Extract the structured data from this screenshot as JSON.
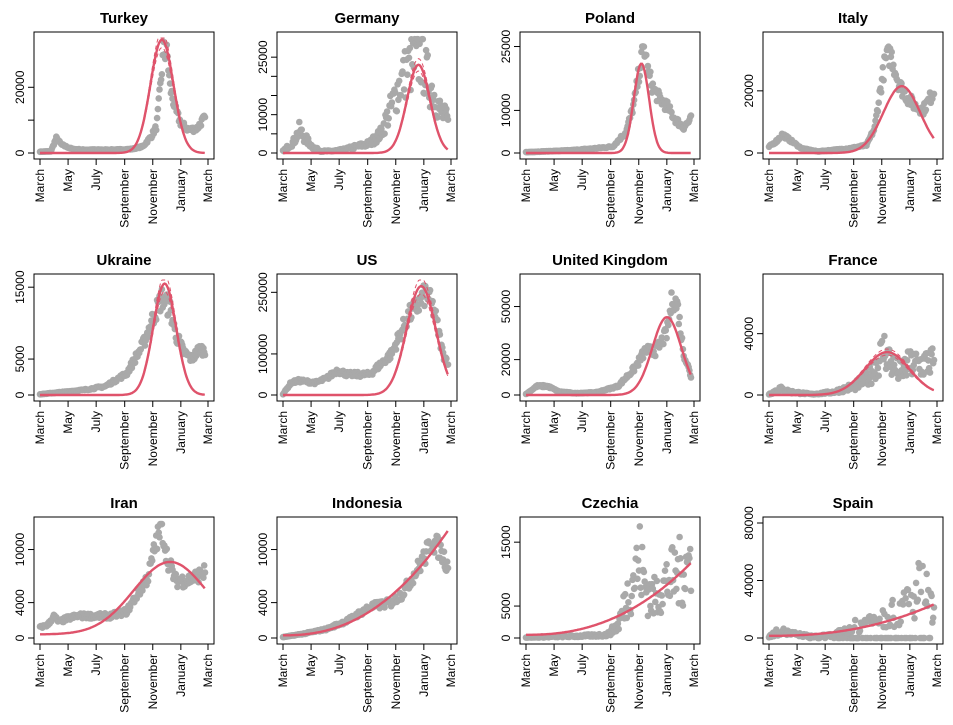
{
  "x_tick_labels": [
    "March",
    "May",
    "July",
    "September",
    "November",
    "January",
    "March"
  ],
  "colors": {
    "points": "#a9a9a9",
    "fit": "#df536b",
    "axis": "#000000"
  },
  "chart_data": [
    {
      "type": "scatter",
      "title": "Turkey",
      "ylim": [
        0,
        35000
      ],
      "yticks": [
        0,
        10000,
        20000
      ],
      "ytick_labels": [
        "0",
        "",
        "20000"
      ],
      "shape": [
        [
          0,
          400
        ],
        [
          20,
          500
        ],
        [
          30,
          4500
        ],
        [
          40,
          2500
        ],
        [
          60,
          1200
        ],
        [
          80,
          1000
        ],
        [
          100,
          1000
        ],
        [
          120,
          1000
        ],
        [
          140,
          1000
        ],
        [
          170,
          1200
        ],
        [
          190,
          2000
        ],
        [
          205,
          5000
        ],
        [
          215,
          8000
        ],
        [
          222,
          20000
        ],
        [
          228,
          31000
        ],
        [
          235,
          30000
        ],
        [
          240,
          20000
        ],
        [
          250,
          13000
        ],
        [
          260,
          9000
        ],
        [
          275,
          7000
        ],
        [
          290,
          7500
        ],
        [
          300,
          10000
        ],
        [
          305,
          10500
        ]
      ],
      "fit": {
        "peak": 34500,
        "center": 225,
        "width": 30
      },
      "ci": true
    },
    {
      "type": "scatter",
      "title": "Germany",
      "ylim": [
        0,
        30000
      ],
      "yticks": [
        0,
        5000,
        10000,
        15000,
        20000,
        25000
      ],
      "ytick_labels": [
        "0",
        "",
        "10000",
        "",
        "",
        "25000"
      ],
      "shape": [
        [
          0,
          500
        ],
        [
          20,
          3000
        ],
        [
          30,
          6000
        ],
        [
          40,
          4000
        ],
        [
          55,
          1500
        ],
        [
          70,
          500
        ],
        [
          90,
          500
        ],
        [
          110,
          800
        ],
        [
          130,
          1500
        ],
        [
          160,
          2500
        ],
        [
          180,
          5000
        ],
        [
          200,
          12000
        ],
        [
          215,
          18000
        ],
        [
          230,
          22000
        ],
        [
          245,
          24000
        ],
        [
          255,
          25000
        ],
        [
          265,
          20000
        ],
        [
          280,
          15000
        ],
        [
          290,
          11000
        ],
        [
          305,
          8000
        ]
      ],
      "spread": 0.35,
      "fit": {
        "peak": 23000,
        "center": 250,
        "width": 30
      },
      "ci": true
    },
    {
      "type": "scatter",
      "title": "Poland",
      "ylim": [
        0,
        27000
      ],
      "yticks": [
        0,
        10000,
        25000
      ],
      "ytick_labels": [
        "0",
        "10000",
        "25000"
      ],
      "shape": [
        [
          0,
          200
        ],
        [
          40,
          400
        ],
        [
          80,
          600
        ],
        [
          120,
          1000
        ],
        [
          160,
          1500
        ],
        [
          185,
          5000
        ],
        [
          200,
          12000
        ],
        [
          210,
          20000
        ],
        [
          218,
          25000
        ],
        [
          225,
          19000
        ],
        [
          235,
          15000
        ],
        [
          245,
          13000
        ],
        [
          260,
          11000
        ],
        [
          275,
          8000
        ],
        [
          290,
          6000
        ],
        [
          305,
          8000
        ]
      ],
      "fit": {
        "peak": 21000,
        "center": 213,
        "width": 20
      }
    },
    {
      "type": "scatter",
      "title": "Italy",
      "ylim": [
        0,
        37000
      ],
      "yticks": [
        0,
        20000
      ],
      "ytick_labels": [
        "0",
        "20000"
      ],
      "shape": [
        [
          0,
          2000
        ],
        [
          15,
          4000
        ],
        [
          25,
          6000
        ],
        [
          40,
          4000
        ],
        [
          60,
          1500
        ],
        [
          90,
          500
        ],
        [
          120,
          1000
        ],
        [
          150,
          1500
        ],
        [
          180,
          2500
        ],
        [
          195,
          8000
        ],
        [
          205,
          20000
        ],
        [
          215,
          30000
        ],
        [
          225,
          32000
        ],
        [
          240,
          22000
        ],
        [
          255,
          18000
        ],
        [
          270,
          15000
        ],
        [
          285,
          14000
        ],
        [
          305,
          20000
        ]
      ],
      "fit": {
        "peak": 21500,
        "center": 245,
        "width": 48
      }
    },
    {
      "type": "scatter",
      "title": "Ukraine",
      "ylim": [
        0,
        16000
      ],
      "yticks": [
        0,
        5000,
        15000
      ],
      "ytick_labels": [
        "0",
        "5000",
        "15000"
      ],
      "shape": [
        [
          0,
          100
        ],
        [
          40,
          400
        ],
        [
          80,
          700
        ],
        [
          120,
          1200
        ],
        [
          160,
          3000
        ],
        [
          190,
          7000
        ],
        [
          210,
          11000
        ],
        [
          225,
          13500
        ],
        [
          240,
          12000
        ],
        [
          250,
          8500
        ],
        [
          265,
          6000
        ],
        [
          280,
          5000
        ],
        [
          295,
          6500
        ],
        [
          305,
          6000
        ]
      ],
      "fit": {
        "peak": 15500,
        "center": 230,
        "width": 30
      },
      "ci": true
    },
    {
      "type": "scatter",
      "title": "US",
      "ylim": [
        0,
        280000
      ],
      "yticks": [
        0,
        100000,
        250000
      ],
      "ytick_labels": [
        "0",
        "100000",
        "250000"
      ],
      "shape": [
        [
          0,
          2000
        ],
        [
          15,
          30000
        ],
        [
          30,
          35000
        ],
        [
          60,
          30000
        ],
        [
          80,
          40000
        ],
        [
          100,
          60000
        ],
        [
          120,
          50000
        ],
        [
          160,
          50000
        ],
        [
          200,
          100000
        ],
        [
          230,
          190000
        ],
        [
          250,
          220000
        ],
        [
          265,
          250000
        ],
        [
          280,
          200000
        ],
        [
          295,
          100000
        ],
        [
          305,
          80000
        ]
      ],
      "fit": {
        "peak": 265000,
        "center": 255,
        "width": 38
      },
      "ci": true
    },
    {
      "type": "scatter",
      "title": "United Kingdom",
      "ylim": [
        0,
        65000
      ],
      "yticks": [
        0,
        20000,
        50000
      ],
      "ytick_labels": [
        "0",
        "20000",
        "50000"
      ],
      "shape": [
        [
          0,
          500
        ],
        [
          20,
          5000
        ],
        [
          40,
          5000
        ],
        [
          60,
          2000
        ],
        [
          90,
          1000
        ],
        [
          130,
          1500
        ],
        [
          170,
          5000
        ],
        [
          200,
          15000
        ],
        [
          220,
          25000
        ],
        [
          240,
          25000
        ],
        [
          260,
          35000
        ],
        [
          270,
          55000
        ],
        [
          280,
          50000
        ],
        [
          290,
          25000
        ],
        [
          305,
          10000
        ]
      ],
      "fit": {
        "peak": 44000,
        "center": 260,
        "width": 38
      }
    },
    {
      "type": "scatter",
      "title": "France",
      "ylim": [
        0,
        75000
      ],
      "yticks": [
        0,
        40000
      ],
      "ytick_labels": [
        "0",
        "40000"
      ],
      "shape": [
        [
          0,
          500
        ],
        [
          20,
          4000
        ],
        [
          40,
          2000
        ],
        [
          80,
          500
        ],
        [
          120,
          2000
        ],
        [
          160,
          6000
        ],
        [
          185,
          12000
        ],
        [
          205,
          25000
        ],
        [
          215,
          30000
        ],
        [
          225,
          20000
        ],
        [
          240,
          15000
        ],
        [
          260,
          20000
        ],
        [
          280,
          20000
        ],
        [
          300,
          22000
        ],
        [
          305,
          20000
        ]
      ],
      "spread": 0.5,
      "fit": {
        "peak": 28000,
        "center": 218,
        "width": 58
      },
      "ci": true
    },
    {
      "type": "scatter",
      "title": "Iran",
      "ylim": [
        0,
        13000
      ],
      "yticks": [
        0,
        4000,
        10000
      ],
      "ytick_labels": [
        "0",
        "4000",
        "10000"
      ],
      "shape": [
        [
          0,
          1200
        ],
        [
          15,
          1500
        ],
        [
          25,
          2500
        ],
        [
          35,
          1800
        ],
        [
          50,
          2200
        ],
        [
          70,
          2500
        ],
        [
          100,
          2500
        ],
        [
          130,
          2500
        ],
        [
          160,
          3000
        ],
        [
          180,
          5000
        ],
        [
          200,
          7000
        ],
        [
          215,
          11000
        ],
        [
          225,
          12500
        ],
        [
          235,
          9000
        ],
        [
          250,
          6500
        ],
        [
          270,
          6500
        ],
        [
          290,
          7000
        ],
        [
          305,
          7500
        ]
      ],
      "fit": {
        "peak": 8600,
        "center": 240,
        "width": 95,
        "base": 400
      }
    },
    {
      "type": "scatter",
      "title": "Indonesia",
      "ylim": [
        0,
        13000
      ],
      "yticks": [
        0,
        4000,
        10000
      ],
      "ytick_labels": [
        "0",
        "4000",
        "10000"
      ],
      "shape": [
        [
          0,
          100
        ],
        [
          40,
          500
        ],
        [
          80,
          1000
        ],
        [
          120,
          2000
        ],
        [
          160,
          3500
        ],
        [
          200,
          4000
        ],
        [
          220,
          5000
        ],
        [
          240,
          7000
        ],
        [
          260,
          9000
        ],
        [
          275,
          11000
        ],
        [
          290,
          10000
        ],
        [
          305,
          8000
        ]
      ],
      "fit": {
        "grow": true,
        "a": 300,
        "b": 11900
      }
    },
    {
      "type": "scatter",
      "title": "Czechia",
      "ylim": [
        0,
        18000
      ],
      "yticks": [
        0,
        5000,
        15000
      ],
      "ytick_labels": [
        "0",
        "5000",
        "15000"
      ],
      "shape": [
        [
          0,
          100
        ],
        [
          50,
          200
        ],
        [
          100,
          300
        ],
        [
          150,
          500
        ],
        [
          170,
          2000
        ],
        [
          185,
          6000
        ],
        [
          200,
          10000
        ],
        [
          210,
          12000
        ],
        [
          220,
          8000
        ],
        [
          235,
          6000
        ],
        [
          250,
          8000
        ],
        [
          265,
          9000
        ],
        [
          280,
          10000
        ],
        [
          295,
          11000
        ],
        [
          305,
          12000
        ]
      ],
      "spread": 0.55,
      "fit": {
        "grow": true,
        "a": 500,
        "b": 11300
      }
    },
    {
      "type": "scatter",
      "title": "Spain",
      "ylim": [
        0,
        80000
      ],
      "yticks": [
        0,
        40000,
        80000
      ],
      "ytick_labels": [
        "0",
        "40000",
        "80000"
      ],
      "shape": [
        [
          0,
          1000
        ],
        [
          20,
          5000
        ],
        [
          40,
          3000
        ],
        [
          80,
          1000
        ],
        [
          120,
          2000
        ],
        [
          160,
          8000
        ],
        [
          190,
          12000
        ],
        [
          210,
          15000
        ],
        [
          240,
          20000
        ],
        [
          270,
          30000
        ],
        [
          285,
          40000
        ],
        [
          300,
          20000
        ],
        [
          305,
          15000
        ]
      ],
      "spread": 0.6,
      "zeros": true,
      "fit": {
        "grow": true,
        "a": 1500,
        "b": 22000
      }
    }
  ]
}
